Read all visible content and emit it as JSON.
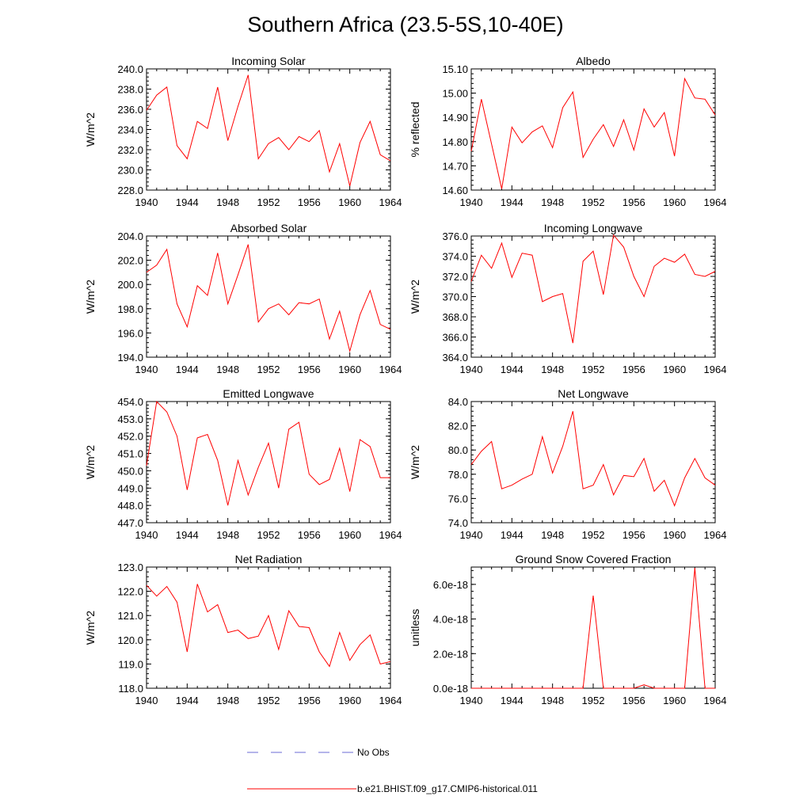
{
  "figure": {
    "title": "Southern Africa (23.5-5S,10-40E)"
  },
  "legend": [
    {
      "label": "No Obs",
      "style": "dashed",
      "color": "#6b6bd6"
    },
    {
      "label": "b.e21.BHIST.f09_g17.CMIP6-historical.011",
      "style": "solid",
      "color": "#ff0000"
    }
  ],
  "chart_data": [
    {
      "type": "line",
      "title": "Incoming Solar",
      "ylabel": "W/m^2",
      "xlim": [
        1940,
        1964
      ],
      "ylim": [
        228,
        240
      ],
      "xticks": [
        1940,
        1944,
        1948,
        1952,
        1956,
        1960,
        1964
      ],
      "xticklabels": [
        "1940",
        "1944",
        "1948",
        "1952",
        "1956",
        "1960",
        "1964"
      ],
      "yticks": [
        228,
        230,
        232,
        234,
        236,
        238,
        240
      ],
      "yticklabels": [
        "228.0",
        "230.0",
        "232.0",
        "234.0",
        "236.0",
        "238.0",
        "240.0"
      ],
      "series": [
        {
          "color": "#ff0000",
          "x": [
            1940,
            1941,
            1942,
            1943,
            1944,
            1945,
            1946,
            1947,
            1948,
            1949,
            1950,
            1951,
            1952,
            1953,
            1954,
            1955,
            1956,
            1957,
            1958,
            1959,
            1960,
            1961,
            1962,
            1963,
            1964
          ],
          "y": [
            235.9,
            237.4,
            238.2,
            232.4,
            231.1,
            234.8,
            234.1,
            238.2,
            232.9,
            236.3,
            239.4,
            231.1,
            232.6,
            233.2,
            232.0,
            233.3,
            232.8,
            233.9,
            229.8,
            232.6,
            228.4,
            232.7,
            234.8,
            231.5,
            230.9
          ]
        }
      ]
    },
    {
      "type": "line",
      "title": "Albedo",
      "ylabel": "% reflected",
      "xlim": [
        1940,
        1964
      ],
      "ylim": [
        14.6,
        15.1
      ],
      "xticks": [
        1940,
        1944,
        1948,
        1952,
        1956,
        1960,
        1964
      ],
      "xticklabels": [
        "1940",
        "1944",
        "1948",
        "1952",
        "1956",
        "1960",
        "1964"
      ],
      "yticks": [
        14.6,
        14.7,
        14.8,
        14.9,
        15.0,
        15.1
      ],
      "yticklabels": [
        "14.60",
        "14.70",
        "14.80",
        "14.90",
        "15.00",
        "15.10"
      ],
      "series": [
        {
          "color": "#ff0000",
          "x": [
            1940,
            1941,
            1942,
            1943,
            1944,
            1945,
            1946,
            1947,
            1948,
            1949,
            1950,
            1951,
            1952,
            1953,
            1954,
            1955,
            1956,
            1957,
            1958,
            1959,
            1960,
            1961,
            1962,
            1963,
            1964
          ],
          "y": [
            14.76,
            14.975,
            14.79,
            14.605,
            14.86,
            14.795,
            14.84,
            14.865,
            14.775,
            14.94,
            15.005,
            14.735,
            14.81,
            14.87,
            14.78,
            14.89,
            14.765,
            14.935,
            14.86,
            14.92,
            14.74,
            15.06,
            14.98,
            14.975,
            14.91
          ]
        }
      ]
    },
    {
      "type": "line",
      "title": "Absorbed Solar",
      "ylabel": "W/m^2",
      "xlim": [
        1940,
        1964
      ],
      "ylim": [
        194,
        204
      ],
      "xticks": [
        1940,
        1944,
        1948,
        1952,
        1956,
        1960,
        1964
      ],
      "xticklabels": [
        "1940",
        "1944",
        "1948",
        "1952",
        "1956",
        "1960",
        "1964"
      ],
      "yticks": [
        194,
        196,
        198,
        200,
        202,
        204
      ],
      "yticklabels": [
        "194.0",
        "196.0",
        "198.0",
        "200.0",
        "202.0",
        "204.0"
      ],
      "series": [
        {
          "color": "#ff0000",
          "x": [
            1940,
            1941,
            1942,
            1943,
            1944,
            1945,
            1946,
            1947,
            1948,
            1949,
            1950,
            1951,
            1952,
            1953,
            1954,
            1955,
            1956,
            1957,
            1958,
            1959,
            1960,
            1961,
            1962,
            1963,
            1964
          ],
          "y": [
            201.0,
            201.6,
            202.9,
            198.4,
            196.5,
            199.9,
            199.1,
            202.6,
            198.4,
            200.8,
            203.3,
            196.9,
            198.0,
            198.4,
            197.5,
            198.5,
            198.4,
            198.8,
            195.5,
            197.8,
            194.5,
            197.5,
            199.5,
            196.7,
            196.3
          ]
        }
      ]
    },
    {
      "type": "line",
      "title": "Incoming Longwave",
      "ylabel": "W/m^2",
      "xlim": [
        1940,
        1964
      ],
      "ylim": [
        364,
        376
      ],
      "xticks": [
        1940,
        1944,
        1948,
        1952,
        1956,
        1960,
        1964
      ],
      "xticklabels": [
        "1940",
        "1944",
        "1948",
        "1952",
        "1956",
        "1960",
        "1964"
      ],
      "yticks": [
        364,
        366,
        368,
        370,
        372,
        374,
        376
      ],
      "yticklabels": [
        "364.0",
        "366.0",
        "368.0",
        "370.0",
        "372.0",
        "374.0",
        "376.0"
      ],
      "series": [
        {
          "color": "#ff0000",
          "x": [
            1940,
            1941,
            1942,
            1943,
            1944,
            1945,
            1946,
            1947,
            1948,
            1949,
            1950,
            1951,
            1952,
            1953,
            1954,
            1955,
            1956,
            1957,
            1958,
            1959,
            1960,
            1961,
            1962,
            1963,
            1964
          ],
          "y": [
            371.5,
            374.1,
            372.8,
            375.3,
            371.9,
            374.3,
            374.1,
            369.5,
            370.0,
            370.3,
            365.4,
            373.5,
            374.5,
            370.2,
            376.1,
            374.9,
            372.0,
            370.0,
            373.0,
            373.8,
            373.4,
            374.2,
            372.2,
            372.0,
            372.5
          ]
        }
      ]
    },
    {
      "type": "line",
      "title": "Emitted Longwave",
      "ylabel": "W/m^2",
      "xlim": [
        1940,
        1964
      ],
      "ylim": [
        447,
        454
      ],
      "xticks": [
        1940,
        1944,
        1948,
        1952,
        1956,
        1960,
        1964
      ],
      "xticklabels": [
        "1940",
        "1944",
        "1948",
        "1952",
        "1956",
        "1960",
        "1964"
      ],
      "yticks": [
        447,
        448,
        449,
        450,
        451,
        452,
        453,
        454
      ],
      "yticklabels": [
        "447.0",
        "448.0",
        "449.0",
        "450.0",
        "451.0",
        "452.0",
        "453.0",
        "454.0"
      ],
      "series": [
        {
          "color": "#ff0000",
          "x": [
            1940,
            1941,
            1942,
            1943,
            1944,
            1945,
            1946,
            1947,
            1948,
            1949,
            1950,
            1951,
            1952,
            1953,
            1954,
            1955,
            1956,
            1957,
            1958,
            1959,
            1960,
            1961,
            1962,
            1963,
            1964
          ],
          "y": [
            450.3,
            454.0,
            453.4,
            452.0,
            448.9,
            451.9,
            452.1,
            450.6,
            448.0,
            450.6,
            448.6,
            450.2,
            451.6,
            449.0,
            452.4,
            452.8,
            449.8,
            449.2,
            449.5,
            451.3,
            448.8,
            451.8,
            451.4,
            449.6,
            449.6
          ]
        }
      ]
    },
    {
      "type": "line",
      "title": "Net Longwave",
      "ylabel": "W/m^2",
      "xlim": [
        1940,
        1964
      ],
      "ylim": [
        74,
        84
      ],
      "xticks": [
        1940,
        1944,
        1948,
        1952,
        1956,
        1960,
        1964
      ],
      "xticklabels": [
        "1940",
        "1944",
        "1948",
        "1952",
        "1956",
        "1960",
        "1964"
      ],
      "yticks": [
        74,
        76,
        78,
        80,
        82,
        84
      ],
      "yticklabels": [
        "74.0",
        "76.0",
        "78.0",
        "80.0",
        "82.0",
        "84.0"
      ],
      "series": [
        {
          "color": "#ff0000",
          "x": [
            1940,
            1941,
            1942,
            1943,
            1944,
            1945,
            1946,
            1947,
            1948,
            1949,
            1950,
            1951,
            1952,
            1953,
            1954,
            1955,
            1956,
            1957,
            1958,
            1959,
            1960,
            1961,
            1962,
            1963,
            1964
          ],
          "y": [
            78.8,
            79.9,
            80.7,
            76.8,
            77.1,
            77.6,
            78.0,
            81.1,
            78.1,
            80.3,
            83.2,
            76.8,
            77.1,
            78.8,
            76.3,
            77.9,
            77.8,
            79.3,
            76.6,
            77.5,
            75.4,
            77.7,
            79.3,
            77.7,
            77.1
          ]
        }
      ]
    },
    {
      "type": "line",
      "title": "Net Radiation",
      "ylabel": "W/m^2",
      "xlim": [
        1940,
        1964
      ],
      "ylim": [
        118,
        123
      ],
      "xticks": [
        1940,
        1944,
        1948,
        1952,
        1956,
        1960,
        1964
      ],
      "xticklabels": [
        "1940",
        "1944",
        "1948",
        "1952",
        "1956",
        "1960",
        "1964"
      ],
      "yticks": [
        118,
        119,
        120,
        121,
        122,
        123
      ],
      "yticklabels": [
        "118.0",
        "119.0",
        "120.0",
        "121.0",
        "122.0",
        "123.0"
      ],
      "series": [
        {
          "color": "#ff0000",
          "x": [
            1940,
            1941,
            1942,
            1943,
            1944,
            1945,
            1946,
            1947,
            1948,
            1949,
            1950,
            1951,
            1952,
            1953,
            1954,
            1955,
            1956,
            1957,
            1958,
            1959,
            1960,
            1961,
            1962,
            1963,
            1964
          ],
          "y": [
            122.25,
            121.8,
            122.2,
            121.55,
            119.5,
            122.3,
            121.15,
            121.45,
            120.3,
            120.4,
            120.05,
            120.15,
            121.0,
            119.6,
            121.2,
            120.55,
            120.5,
            119.5,
            118.9,
            120.3,
            119.15,
            119.8,
            120.2,
            119.0,
            119.1
          ]
        }
      ]
    },
    {
      "type": "line",
      "title": "Ground Snow Covered Fraction",
      "ylabel": "unitless",
      "xlim": [
        1940,
        1964
      ],
      "ylim": [
        0,
        7e-18
      ],
      "xticks": [
        1940,
        1944,
        1948,
        1952,
        1956,
        1960,
        1964
      ],
      "xticklabels": [
        "1940",
        "1944",
        "1948",
        "1952",
        "1956",
        "1960",
        "1964"
      ],
      "yticks": [
        0,
        2e-18,
        4e-18,
        6e-18
      ],
      "yticklabels": [
        "0.0e-18",
        "2.0e-18",
        "4.0e-18",
        "6.0e-18"
      ],
      "series": [
        {
          "color": "#ff0000",
          "x": [
            1940,
            1941,
            1942,
            1943,
            1944,
            1945,
            1946,
            1947,
            1948,
            1949,
            1950,
            1951,
            1952,
            1953,
            1954,
            1955,
            1956,
            1957,
            1958,
            1959,
            1960,
            1961,
            1962,
            1963,
            1964
          ],
          "y": [
            0,
            0,
            0,
            0,
            0,
            0,
            0,
            0,
            0,
            0,
            0,
            0,
            5.35e-18,
            0,
            0,
            0,
            0,
            2e-19,
            0,
            0,
            0,
            0,
            6.95e-18,
            0,
            0
          ]
        }
      ]
    }
  ]
}
